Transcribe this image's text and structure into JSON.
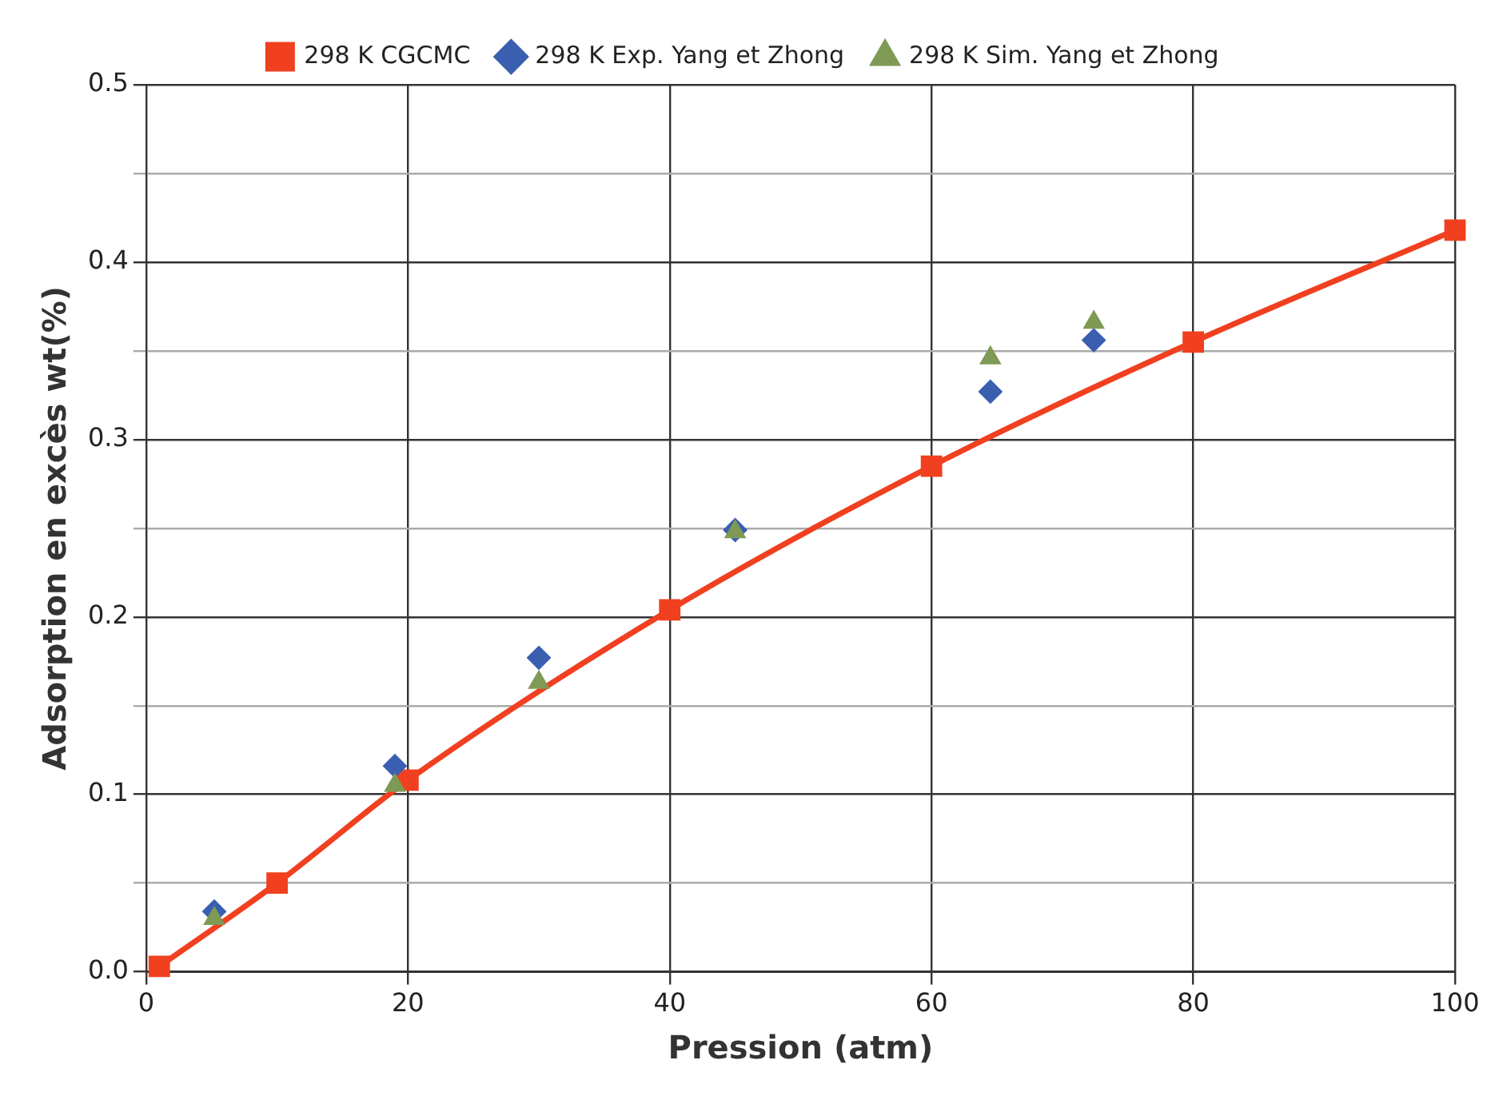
{
  "chart_data": {
    "type": "line",
    "xlabel": "Pression (atm)",
    "ylabel": "Adsorption en excès wt(%)",
    "xlim": [
      0,
      100
    ],
    "xticks": [
      0,
      20,
      40,
      60,
      80,
      100
    ],
    "ylim": [
      0,
      0.5
    ],
    "yticks": [
      {
        "value": 0,
        "label": "0.0"
      },
      {
        "value": 0.05,
        "label": null
      },
      0.1,
      {
        "value": 0.15,
        "label": null
      },
      0.2,
      {
        "value": 0.25,
        "label": null
      },
      0.3,
      {
        "value": 0.35,
        "label": null
      },
      0.4,
      {
        "value": 0.45,
        "label": null
      },
      0.5
    ],
    "grid": true,
    "legend": "top",
    "series": [
      {
        "name": "298 K CGCMC",
        "marker": "square",
        "color": "#f04020",
        "x": [
          1,
          10,
          20,
          40,
          60,
          80,
          100
        ],
        "values": [
          0.003,
          0.05,
          0.108,
          0.204,
          0.285,
          0.355,
          0.418
        ]
      },
      {
        "name": "298 K Exp. Yang et Zhong",
        "type": "scatter",
        "marker": "diamond",
        "color": "#3a5fb0",
        "x": [
          5.2,
          19,
          30,
          45,
          64.5,
          72.4
        ],
        "values": [
          0.034,
          0.116,
          0.177,
          0.249,
          0.327,
          0.356
        ]
      },
      {
        "name": "298 K Sim. Yang et Zhong",
        "type": "scatter",
        "marker": "triangle",
        "color": "#7f9a55",
        "x": [
          5.2,
          19,
          30,
          45,
          64.5,
          72.4
        ],
        "values": [
          0.03,
          0.105,
          0.163,
          0.248,
          0.346,
          0.366
        ]
      }
    ]
  }
}
